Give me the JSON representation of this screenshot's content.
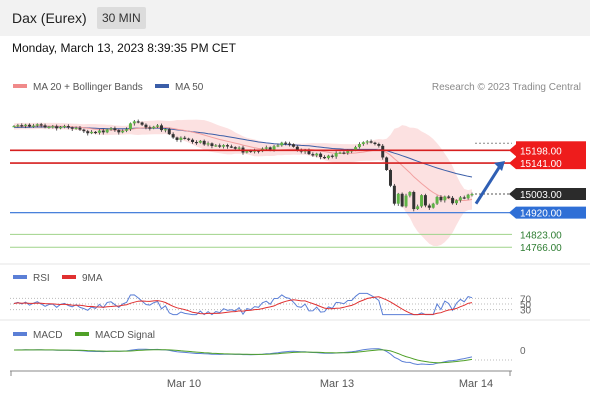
{
  "header": {
    "title": "Dax (Eurex)",
    "timeframe": "30 MIN",
    "datetime": "Monday, March 13, 2023 8:39:35 PM CET"
  },
  "chart_data": {
    "type": "candlestick",
    "instrument": "Dax (Eurex)",
    "timeframe": "30 MIN",
    "credit": "Research © 2023 Trading Central",
    "price_panel": {
      "legend": [
        {
          "label": "MA 20 + Bollinger Bands",
          "color": "#f08a8a"
        },
        {
          "label": "MA 50",
          "color": "#3b5ea8"
        }
      ],
      "ylim": [
        14700,
        15440
      ],
      "resistance_levels": [
        15198.0,
        15141.0
      ],
      "current_price": 15003.0,
      "support_levels": [
        14920.0,
        14823.0,
        14766.0
      ],
      "level_labels": {
        "r1": "15198.00",
        "r2": "15141.00",
        "current": "15003.00",
        "s1": "14920.00",
        "s2": "14823.00",
        "s3": "14766.00"
      },
      "close_series": [
        15306,
        15310,
        15307,
        15312,
        15304,
        15308,
        15314,
        15309,
        15300,
        15303,
        15305,
        15296,
        15302,
        15306,
        15300,
        15294,
        15298,
        15290,
        15283,
        15274,
        15280,
        15276,
        15286,
        15278,
        15291,
        15296,
        15288,
        15278,
        15285,
        15292,
        15318,
        15327,
        15322,
        15312,
        15300,
        15296,
        15303,
        15309,
        15288,
        15292,
        15270,
        15255,
        15244,
        15254,
        15250,
        15245,
        15235,
        15232,
        15240,
        15224,
        15229,
        15217,
        15220,
        15214,
        15221,
        15215,
        15212,
        15205,
        15210,
        15188,
        15196,
        15192,
        15197,
        15194,
        15205,
        15211,
        15202,
        15216,
        15220,
        15232,
        15228,
        15225,
        15214,
        15198,
        15192,
        15200,
        15181,
        15175,
        15183,
        15168,
        15163,
        15174,
        15170,
        15186,
        15188,
        15186,
        15195,
        15198,
        15212,
        15226,
        15234,
        15238,
        15232,
        15226,
        15218,
        15166,
        15110,
        15040,
        14960,
        15004,
        14948,
        14996,
        15012,
        14936,
        14948,
        14998,
        14952,
        14942,
        14960,
        14990,
        14975,
        14992,
        14986,
        14962,
        14975,
        14988,
        14984,
        15000,
        15003
      ],
      "ma20_series": [
        15304,
        15305,
        15306,
        15306,
        15306,
        15306,
        15307,
        15307,
        15306,
        15306,
        15306,
        15306,
        15305,
        15305,
        15304,
        15303,
        15302,
        15301,
        15299,
        15296,
        15294,
        15292,
        15291,
        15290,
        15289,
        15289,
        15288,
        15288,
        15287,
        15288,
        15291,
        15294,
        15296,
        15298,
        15298,
        15299,
        15300,
        15301,
        15300,
        15300,
        15298,
        15295,
        15292,
        15289,
        15286,
        15283,
        15279,
        15275,
        15271,
        15266,
        15261,
        15256,
        15251,
        15246,
        15242,
        15238,
        15234,
        15230,
        15226,
        15221,
        15217,
        15213,
        15209,
        15206,
        15204,
        15202,
        15200,
        15199,
        15199,
        15200,
        15201,
        15202,
        15203,
        15203,
        15203,
        15203,
        15202,
        15200,
        15198,
        15195,
        15192,
        15189,
        15186,
        15185,
        15184,
        15184,
        15184,
        15185,
        15186,
        15188,
        15190,
        15193,
        15196,
        15199,
        15201,
        15197,
        15188,
        15176,
        15160,
        15146,
        15130,
        15114,
        15098,
        15080,
        15065,
        15050,
        15036,
        15022,
        15010,
        15000,
        14992,
        14986,
        14982,
        14979,
        14976,
        14974,
        14974,
        14976,
        14979
      ],
      "ma50_series": [
        15300,
        15300,
        15301,
        15301,
        15301,
        15302,
        15302,
        15302,
        15302,
        15302,
        15302,
        15302,
        15302,
        15302,
        15301,
        15301,
        15300,
        15300,
        15299,
        15298,
        15297,
        15296,
        15295,
        15295,
        15294,
        15294,
        15294,
        15294,
        15294,
        15294,
        15295,
        15296,
        15297,
        15297,
        15297,
        15297,
        15297,
        15297,
        15296,
        15295,
        15293,
        15291,
        15289,
        15287,
        15285,
        15283,
        15281,
        15279,
        15277,
        15275,
        15272,
        15270,
        15267,
        15264,
        15262,
        15259,
        15256,
        15253,
        15250,
        15247,
        15244,
        15241,
        15238,
        15235,
        15233,
        15231,
        15229,
        15227,
        15226,
        15225,
        15224,
        15223,
        15222,
        15221,
        15220,
        15219,
        15218,
        15216,
        15214,
        15212,
        15210,
        15208,
        15206,
        15205,
        15204,
        15203,
        15202,
        15202,
        15202,
        15202,
        15202,
        15202,
        15202,
        15202,
        15202,
        15200,
        15196,
        15191,
        15185,
        15180,
        15174,
        15168,
        15162,
        15155,
        15149,
        15143,
        15137,
        15131,
        15125,
        15119,
        15114,
        15109,
        15104,
        15099,
        15094,
        15090,
        15086,
        15082,
        15079
      ]
    },
    "rsi_panel": {
      "legend": [
        {
          "label": "RSI",
          "color": "#5b7fd6"
        },
        {
          "label": "9MA",
          "color": "#e03030"
        }
      ],
      "ylim": [
        0,
        100
      ],
      "levels": [
        70,
        50,
        30
      ],
      "level_labels": [
        "70",
        "50",
        "30"
      ]
    },
    "macd_panel": {
      "legend": [
        {
          "label": "MACD",
          "color": "#5b7fd6"
        },
        {
          "label": "MACD Signal",
          "color": "#4fa027"
        }
      ],
      "zero_label": "0"
    },
    "x_axis": {
      "tick_labels": [
        "Mar 10",
        "Mar 13",
        "Mar 14"
      ]
    },
    "projection_arrow": {
      "from": 14960,
      "to": 15150,
      "color": "#2f5fb4"
    }
  }
}
